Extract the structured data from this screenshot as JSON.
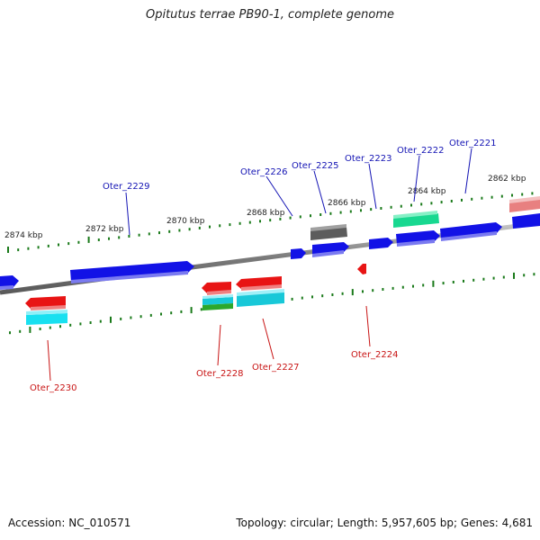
{
  "title": "Opitutus terrae PB90-1, complete genome",
  "footer": {
    "accession": "Accession: NC_010571",
    "summary": "Topology: circular; Length: 5,957,605 bp; Genes: 4,681"
  },
  "scale": {
    "ticks": [
      {
        "label": "2874 kbp"
      },
      {
        "label": "2872 kbp"
      },
      {
        "label": "2870 kbp"
      },
      {
        "label": "2868 kbp"
      },
      {
        "label": "2866 kbp"
      },
      {
        "label": "2864 kbp"
      },
      {
        "label": "2862 kbp"
      }
    ]
  },
  "genes": [
    {
      "label": "Oter_2221",
      "strand": "forward"
    },
    {
      "label": "Oter_2222",
      "strand": "forward"
    },
    {
      "label": "Oter_2223",
      "strand": "forward"
    },
    {
      "label": "Oter_2225",
      "strand": "forward"
    },
    {
      "label": "Oter_2226",
      "strand": "forward"
    },
    {
      "label": "Oter_2229",
      "strand": "forward"
    },
    {
      "label": "Oter_2224",
      "strand": "reverse"
    },
    {
      "label": "Oter_2227",
      "strand": "reverse"
    },
    {
      "label": "Oter_2228",
      "strand": "reverse"
    },
    {
      "label": "Oter_2230",
      "strand": "reverse"
    }
  ],
  "colors": {
    "forward_cds": "#1010e0",
    "reverse_cds": "#e01010",
    "forward_label": "#1414b4",
    "reverse_label": "#c81414",
    "tick": "#1a7a1a",
    "backbone": "#8a8a8a"
  }
}
